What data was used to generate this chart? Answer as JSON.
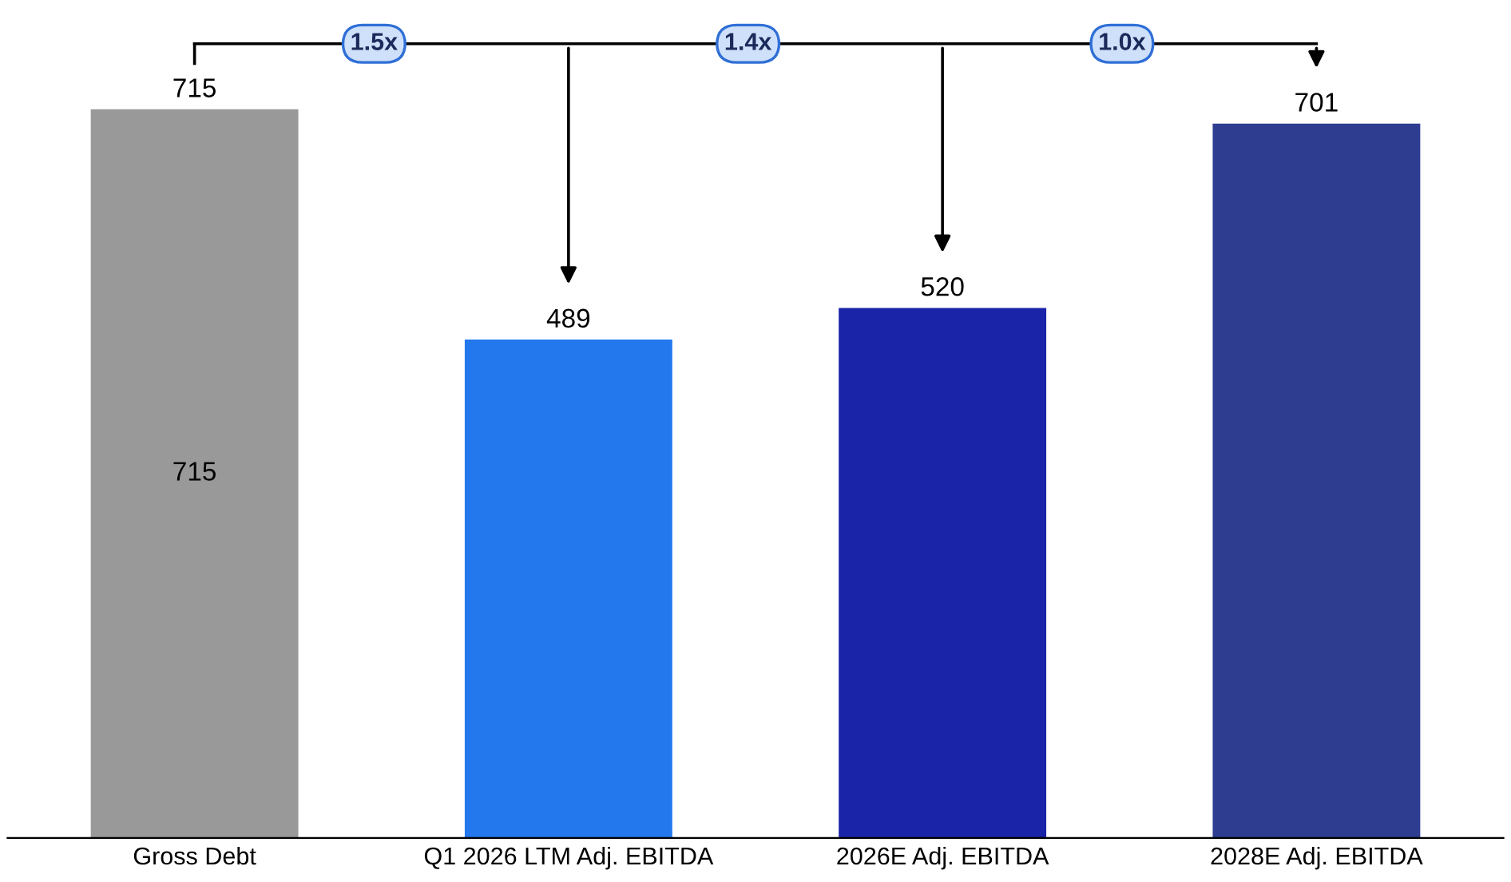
{
  "chart_data": {
    "type": "bar",
    "categories": [
      "Gross Debt",
      "Q1 2026 LTM Adj. EBITDA",
      "2026E Adj. EBITDA",
      "2028E Adj. EBITDA"
    ],
    "values": [
      715,
      489,
      520,
      701
    ],
    "colors": [
      "#999999",
      "#2378ee",
      "#1a24a8",
      "#2e3d8f"
    ],
    "data_labels": true,
    "annotations": [
      "715",
      "1.5x",
      "1.4x",
      "1.0x"
    ],
    "grid": false,
    "legend": false
  }
}
